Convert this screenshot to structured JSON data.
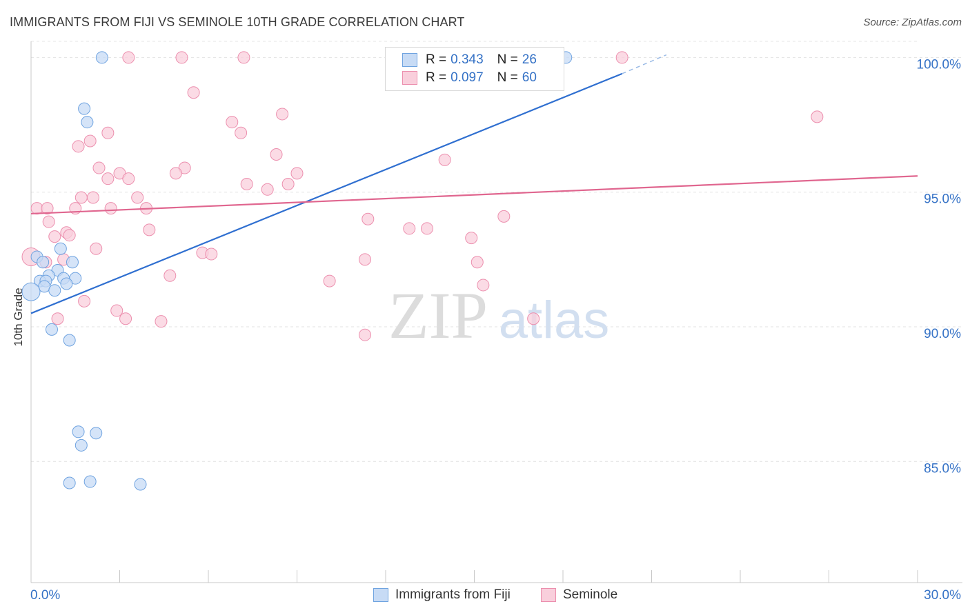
{
  "header": {
    "title": "IMMIGRANTS FROM FIJI VS SEMINOLE 10TH GRADE CORRELATION CHART",
    "source": "Source: ZipAtlas.com"
  },
  "watermark": {
    "zip": "ZIP",
    "atlas": "atlas"
  },
  "legend": {
    "rows": [
      {
        "r_label": "R =",
        "r_value": "0.343",
        "n_label": "N =",
        "n_value": "26"
      },
      {
        "r_label": "R =",
        "r_value": "0.097",
        "n_label": "N =",
        "n_value": "60"
      }
    ]
  },
  "chart_data": {
    "type": "scatter",
    "title": "IMMIGRANTS FROM FIJI VS SEMINOLE 10TH GRADE CORRELATION CHART",
    "xlabel": "",
    "ylabel": "10th Grade",
    "xlim": [
      0,
      30
    ],
    "ylim": [
      80.5,
      100.6
    ],
    "x_tick_labels": [
      "0.0%",
      "30.0%"
    ],
    "y_ticks": [
      {
        "value": 100,
        "label": "100.0%"
      },
      {
        "value": 95,
        "label": "95.0%"
      },
      {
        "value": 90,
        "label": "90.0%"
      },
      {
        "value": 85,
        "label": "85.0%"
      }
    ],
    "legend_position": "top-center",
    "series": [
      {
        "name": "Immigrants from Fiji",
        "color": "#6fa3e0",
        "fill": "#c7dbf5",
        "line_color": "#2f6fd0",
        "r": 0.343,
        "n": 26,
        "trend": {
          "x0": 0,
          "y0": 90.5,
          "x1": 20,
          "y1": 99.4,
          "dash_to_x": 21.5,
          "dash_to_y": 100.1
        },
        "points": [
          [
            2.4,
            100.0
          ],
          [
            18.1,
            100.0
          ],
          [
            1.8,
            98.1
          ],
          [
            1.9,
            97.6
          ],
          [
            0.2,
            92.6
          ],
          [
            0.4,
            92.4
          ],
          [
            1.0,
            92.9
          ],
          [
            1.4,
            92.4
          ],
          [
            0.9,
            92.1
          ],
          [
            0.6,
            91.9
          ],
          [
            1.1,
            91.8
          ],
          [
            1.5,
            91.8
          ],
          [
            0.3,
            91.7
          ],
          [
            0.5,
            91.7
          ],
          [
            1.2,
            91.6
          ],
          [
            0.45,
            91.5
          ],
          [
            0.8,
            91.35
          ],
          [
            0.0,
            91.3
          ],
          [
            0.7,
            89.9
          ],
          [
            1.3,
            89.5
          ],
          [
            1.6,
            86.1
          ],
          [
            2.2,
            86.05
          ],
          [
            1.7,
            85.6
          ],
          [
            1.3,
            84.2
          ],
          [
            2.0,
            84.25
          ],
          [
            3.7,
            84.15
          ]
        ]
      },
      {
        "name": "Seminole",
        "color": "#ec8fae",
        "fill": "#f9cfdc",
        "line_color": "#e0668f",
        "r": 0.097,
        "n": 60,
        "trend": {
          "x0": 0,
          "y0": 94.2,
          "x1": 30,
          "y1": 95.6
        },
        "points": [
          [
            3.3,
            100.0
          ],
          [
            5.1,
            100.0
          ],
          [
            7.2,
            100.0
          ],
          [
            20.0,
            100.0
          ],
          [
            5.5,
            98.7
          ],
          [
            8.5,
            97.9
          ],
          [
            6.8,
            97.6
          ],
          [
            26.6,
            97.8
          ],
          [
            7.1,
            97.2
          ],
          [
            2.6,
            97.2
          ],
          [
            2.0,
            96.9
          ],
          [
            1.6,
            96.7
          ],
          [
            8.3,
            96.4
          ],
          [
            14.0,
            96.2
          ],
          [
            2.3,
            95.9
          ],
          [
            5.2,
            95.9
          ],
          [
            3.0,
            95.7
          ],
          [
            4.9,
            95.7
          ],
          [
            9.0,
            95.7
          ],
          [
            2.6,
            95.5
          ],
          [
            3.3,
            95.5
          ],
          [
            7.3,
            95.3
          ],
          [
            8.7,
            95.3
          ],
          [
            8.0,
            95.1
          ],
          [
            1.7,
            94.8
          ],
          [
            2.1,
            94.8
          ],
          [
            3.6,
            94.8
          ],
          [
            0.2,
            94.4
          ],
          [
            0.55,
            94.4
          ],
          [
            1.5,
            94.4
          ],
          [
            2.7,
            94.4
          ],
          [
            3.9,
            94.4
          ],
          [
            11.4,
            94.0
          ],
          [
            16.0,
            94.1
          ],
          [
            0.6,
            93.9
          ],
          [
            4.0,
            93.6
          ],
          [
            12.8,
            93.65
          ],
          [
            13.4,
            93.65
          ],
          [
            1.2,
            93.5
          ],
          [
            1.3,
            93.4
          ],
          [
            0.8,
            93.35
          ],
          [
            14.9,
            93.3
          ],
          [
            2.2,
            92.9
          ],
          [
            5.8,
            92.75
          ],
          [
            6.1,
            92.7
          ],
          [
            0.0,
            92.6
          ],
          [
            1.1,
            92.5
          ],
          [
            0.5,
            92.4
          ],
          [
            11.3,
            92.5
          ],
          [
            15.1,
            92.4
          ],
          [
            4.7,
            91.9
          ],
          [
            10.1,
            91.7
          ],
          [
            15.3,
            91.55
          ],
          [
            1.8,
            90.95
          ],
          [
            2.9,
            90.6
          ],
          [
            3.2,
            90.3
          ],
          [
            0.9,
            90.3
          ],
          [
            4.4,
            90.2
          ],
          [
            17.0,
            90.3
          ],
          [
            11.3,
            89.7
          ]
        ]
      }
    ]
  }
}
